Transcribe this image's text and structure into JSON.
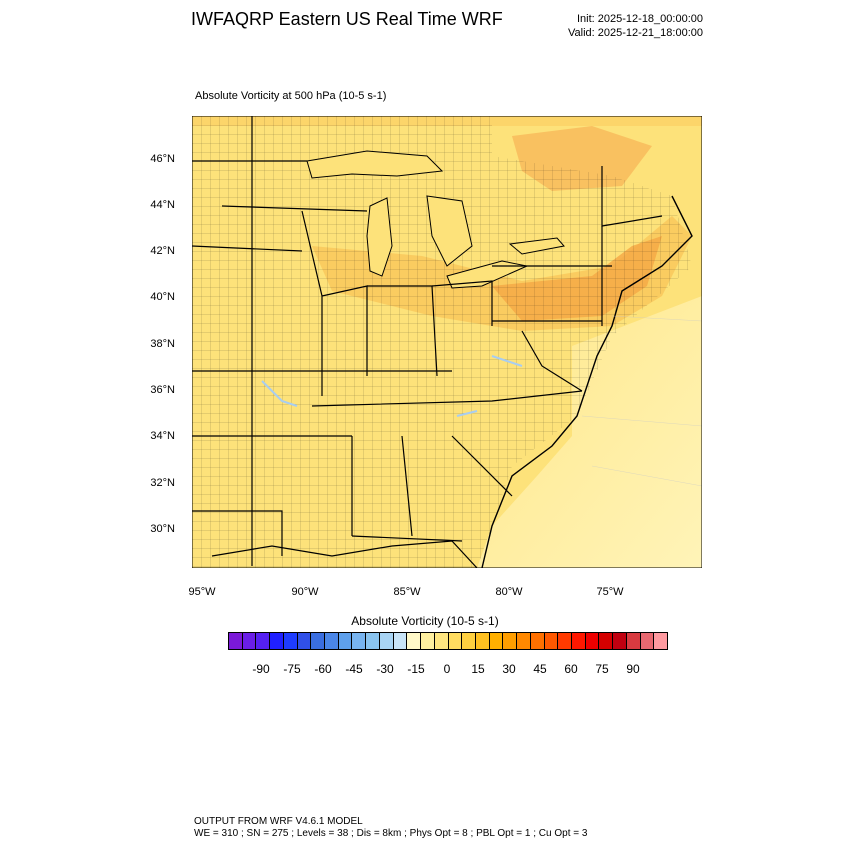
{
  "header": {
    "title": "IWFAQRP Eastern US Real Time WRF",
    "init": "Init: 2025-12-18_00:00:00",
    "valid": "Valid: 2025-12-21_18:00:00"
  },
  "field_title": "Absolute Vorticity at 500 hPa   (10-5 s-1)",
  "map": {
    "lat_labels": [
      "46°N",
      "44°N",
      "42°N",
      "40°N",
      "38°N",
      "36°N",
      "34°N",
      "32°N",
      "30°N"
    ],
    "lon_labels": [
      "95°W",
      "90°W",
      "85°W",
      "80°W",
      "75°W"
    ],
    "colors": {
      "background_field": "#fde27a",
      "high_field": "#f9b24b",
      "ocean_field": "#fff3b0",
      "water_blue": "#a8cdf0",
      "borders": "#000000"
    }
  },
  "colorbar": {
    "title": "Absolute Vorticity  (10-5 s-1)",
    "labels": [
      "-90",
      "-75",
      "-60",
      "-45",
      "-30",
      "-15",
      "0",
      "15",
      "30",
      "45",
      "60",
      "75",
      "90"
    ],
    "colors": [
      "#7b19d8",
      "#6a1ee8",
      "#5520f2",
      "#2020ff",
      "#1e3cff",
      "#3050e8",
      "#3a6ee0",
      "#4a86e8",
      "#5ea0ec",
      "#78b4f0",
      "#8ac4f0",
      "#a8d4f4",
      "#c8e4f8",
      "#fff8c8",
      "#fff0a0",
      "#ffe680",
      "#ffdc60",
      "#ffd040",
      "#ffc020",
      "#ffb000",
      "#ff9e00",
      "#ff8800",
      "#ff7000",
      "#ff5800",
      "#ff3a00",
      "#ff1800",
      "#ee0000",
      "#d40000",
      "#c00010",
      "#d83a40",
      "#e86870",
      "#ff9aa0"
    ]
  },
  "footer": {
    "line1": "OUTPUT FROM WRF V4.6.1 MODEL",
    "line2": "WE = 310 ; SN = 275 ; Levels = 38 ; Dis = 8km ; Phys Opt = 8 ; PBL Opt = 1 ; Cu Opt = 3"
  }
}
